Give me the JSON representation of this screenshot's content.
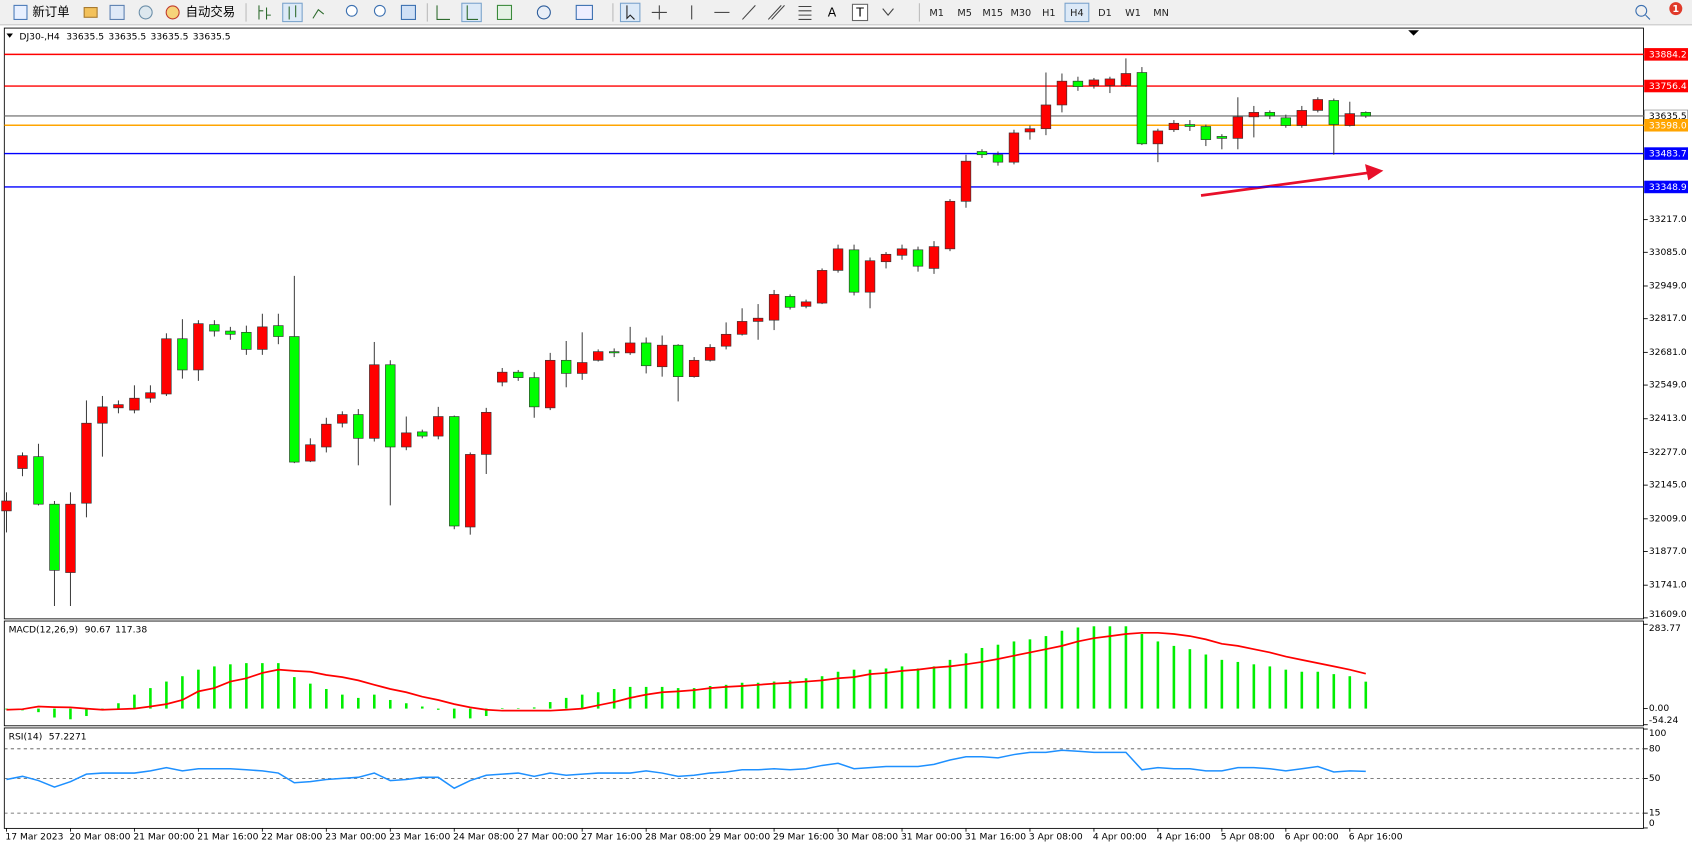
{
  "toolbar": {
    "buttons": [
      "新订单",
      "自动交易"
    ],
    "timeframes": [
      "M1",
      "M5",
      "M15",
      "M30",
      "H1",
      "H4",
      "D1",
      "W1",
      "MN"
    ],
    "text_tools": [
      "A",
      "T"
    ],
    "badge": "1"
  },
  "chart_data": [
    {
      "type": "candlestick",
      "title": "DJ30-,H4",
      "readings": [
        33635.5,
        33635.5,
        33635.5,
        33635.5
      ],
      "categories": [
        "17 Mar 2023",
        null,
        null,
        null,
        "20 Mar 08:00",
        null,
        null,
        null,
        "21 Mar 00:00",
        null,
        null,
        null,
        "21 Mar 16:00",
        null,
        null,
        null,
        "22 Mar 08:00",
        null,
        null,
        null,
        "23 Mar 00:00",
        null,
        null,
        null,
        "23 Mar 16:00",
        null,
        null,
        null,
        "24 Mar 08:00",
        null,
        null,
        null,
        "27 Mar 00:00",
        null,
        null,
        null,
        "27 Mar 16:00",
        null,
        null,
        null,
        "28 Mar 08:00",
        null,
        null,
        null,
        "29 Mar 00:00",
        null,
        null,
        null,
        "29 Mar 16:00",
        null,
        null,
        null,
        "30 Mar 08:00",
        null,
        null,
        null,
        "31 Mar 00:00",
        null,
        null,
        null,
        "31 Mar 16:00",
        null,
        null,
        null,
        "3 Apr 08:00",
        null,
        null,
        null,
        "4 Apr 00:00",
        null,
        null,
        null,
        "4 Apr 16:00",
        null,
        null,
        null,
        "5 Apr 08:00",
        null,
        null,
        null,
        "6 Apr 00:00",
        null,
        null,
        null,
        "6 Apr 16:00",
        null
      ],
      "open": [
        32041,
        32212,
        32260,
        32068,
        31792,
        32072,
        32395,
        32457,
        32448,
        32496,
        32513,
        32736,
        32610,
        32793,
        32767,
        32762,
        32693,
        32789,
        32745,
        32242,
        32299,
        32395,
        32430,
        32334,
        32631,
        32299,
        32360,
        32343,
        32422,
        31976,
        32269,
        32561,
        32601,
        32579,
        32457,
        32649,
        32596,
        32649,
        32684,
        32679,
        32719,
        32623,
        32710,
        32583,
        32649,
        32706,
        32754,
        32806,
        32811,
        32907,
        32867,
        32880,
        33012,
        33095,
        32924,
        33047,
        33073,
        33095,
        33020,
        33099,
        33291,
        33492,
        33479,
        33449,
        33571,
        33584,
        33680,
        33776,
        33759,
        33759,
        33759,
        33811,
        33523,
        33580,
        33601,
        33593,
        33553,
        33545,
        33632,
        33650,
        33628,
        33597,
        33658,
        33698,
        33597,
        33650
      ],
      "high": [
        32116,
        32277,
        32312,
        32081,
        32116,
        32487,
        32505,
        32487,
        32548,
        32548,
        32758,
        32815,
        32811,
        32811,
        32784,
        32789,
        32837,
        32837,
        32990,
        32334,
        32417,
        32443,
        32452,
        32723,
        32649,
        32422,
        32369,
        32461,
        32426,
        32277,
        32457,
        32618,
        32610,
        32601,
        32679,
        32727,
        32762,
        32693,
        32697,
        32784,
        32741,
        32749,
        32714,
        32662,
        32714,
        32802,
        32859,
        32876,
        32933,
        32915,
        32894,
        33020,
        33116,
        33116,
        33064,
        33086,
        33116,
        33108,
        33130,
        33300,
        33479,
        33501,
        33492,
        33580,
        33597,
        33811,
        33807,
        33794,
        33789,
        33794,
        33868,
        33833,
        33584,
        33619,
        33619,
        33601,
        33562,
        33711,
        33676,
        33658,
        33641,
        33676,
        33711,
        33706,
        33693,
        33654
      ],
      "low": [
        31954,
        32181,
        32063,
        31657,
        31657,
        32015,
        32260,
        32435,
        32435,
        32478,
        32505,
        32575,
        32566,
        32745,
        32732,
        32671,
        32671,
        32714,
        32234,
        32238,
        32277,
        32378,
        32225,
        32321,
        32063,
        32286,
        32334,
        32330,
        31967,
        31945,
        32190,
        32544,
        32566,
        32417,
        32448,
        32540,
        32570,
        32644,
        32662,
        32671,
        32596,
        32583,
        32483,
        32579,
        32644,
        32693,
        32749,
        32732,
        32771,
        32854,
        32859,
        32876,
        33003,
        32911,
        32859,
        33020,
        33055,
        33007,
        32998,
        33090,
        33265,
        33466,
        33435,
        33440,
        33540,
        33558,
        33650,
        33737,
        33746,
        33728,
        33754,
        33518,
        33449,
        33571,
        33575,
        33514,
        33501,
        33501,
        33549,
        33623,
        33588,
        33588,
        33650,
        33479,
        33593,
        33628
      ],
      "close": [
        32081,
        32264,
        32068,
        31801,
        32068,
        32395,
        32461,
        32470,
        32496,
        32518,
        32736,
        32610,
        32797,
        32767,
        32754,
        32693,
        32784,
        32745,
        32238,
        32308,
        32391,
        32430,
        32334,
        32631,
        32299,
        32356,
        32343,
        32422,
        31980,
        32269,
        32439,
        32601,
        32579,
        32461,
        32649,
        32596,
        32640,
        32684,
        32679,
        32719,
        32627,
        32710,
        32583,
        32649,
        32701,
        32754,
        32806,
        32819,
        32915,
        32863,
        32885,
        33012,
        33099,
        32924,
        33051,
        33077,
        33099,
        33029,
        33108,
        33291,
        33453,
        33479,
        33449,
        33567,
        33584,
        33680,
        33776,
        33754,
        33781,
        33785,
        33807,
        33523,
        33575,
        33606,
        33593,
        33540,
        33545,
        33632,
        33650,
        33636,
        33597,
        33658,
        33702,
        33601,
        33645,
        33635.5
      ],
      "up_color": "#ff0000",
      "down_color": "#00ff00",
      "ylim": [
        31605,
        33986
      ],
      "yticks": [
        {
          "value": 33217,
          "label": "33217.0"
        },
        {
          "value": 33085,
          "label": "33085.0"
        },
        {
          "value": 32949,
          "label": "32949.0"
        },
        {
          "value": 32817,
          "label": "32817.0"
        },
        {
          "value": 32681,
          "label": "32681.0"
        },
        {
          "value": 32549,
          "label": "32549.0"
        },
        {
          "value": 32413,
          "label": "32413.0"
        },
        {
          "value": 32277,
          "label": "32277.0"
        },
        {
          "value": 32145,
          "label": "32145.0"
        },
        {
          "value": 32009,
          "label": "32009.0"
        },
        {
          "value": 31877,
          "label": "31877.0"
        },
        {
          "value": 31741,
          "label": "31741.0"
        },
        {
          "value": 31609,
          "label": "31609.0"
        }
      ],
      "levels": [
        {
          "value": 33884.2,
          "color": "#ff0000",
          "text_color": "#ffffff"
        },
        {
          "value": 33756.4,
          "color": "#ff0000",
          "text_color": "#ffffff"
        },
        {
          "value": 33635.5,
          "color": "#808080",
          "text_color": "#000000"
        },
        {
          "value": 33598,
          "label": "33598.0",
          "color": "#ffa500",
          "text_color": "#ffffff"
        },
        {
          "value": 33483.7,
          "color": "#0000ff",
          "text_color": "#ffffff"
        },
        {
          "value": 33348.9,
          "color": "#0000ff",
          "text_color": "#ffffff"
        }
      ]
    },
    {
      "type": "macd",
      "title": "MACD(12,26,9)",
      "readings": [
        90.67,
        117.38
      ],
      "histogram": [
        -3,
        -6,
        -12,
        -30,
        -36,
        -25,
        -4,
        18,
        47,
        69,
        91,
        109,
        131,
        142,
        149,
        153,
        153,
        153,
        106,
        84,
        66,
        47,
        36,
        47,
        29,
        18,
        7,
        -4,
        -33,
        -33,
        -25,
        2,
        1,
        4,
        22,
        36,
        47,
        55,
        66,
        73,
        73,
        73,
        69,
        69,
        76,
        80,
        87,
        87,
        91,
        95,
        102,
        109,
        124,
        131,
        131,
        135,
        142,
        135,
        142,
        164,
        186,
        204,
        215,
        226,
        233,
        244,
        262,
        273,
        277,
        277,
        277,
        251,
        226,
        211,
        200,
        182,
        164,
        157,
        149,
        142,
        131,
        124,
        124,
        116,
        109,
        90.67
      ],
      "signal": [
        -4,
        -2,
        7,
        5,
        4,
        0,
        -4,
        -2,
        0,
        7,
        15,
        29,
        58,
        69,
        91,
        102,
        120,
        131,
        127,
        124,
        113,
        106,
        95,
        80,
        66,
        55,
        40,
        29,
        15,
        4,
        -4,
        -7,
        -7,
        -7,
        -7,
        -4,
        0,
        11,
        22,
        36,
        47,
        55,
        58,
        62,
        69,
        73,
        76,
        80,
        84,
        87,
        91,
        95,
        102,
        106,
        116,
        120,
        127,
        131,
        138,
        142,
        149,
        157,
        167,
        178,
        189,
        200,
        211,
        226,
        237,
        244,
        251,
        255,
        255,
        251,
        244,
        233,
        218,
        211,
        200,
        189,
        175,
        164,
        153,
        142,
        131,
        117.38
      ],
      "histogram_color": "#00ee00",
      "signal_color": "#ff0000",
      "ylim": [
        -54.24,
        283.77
      ],
      "yticks": [
        283.77,
        {
          "value": 0,
          "label": "0.00"
        },
        -54.24
      ]
    },
    {
      "type": "line",
      "title": "RSI(14)",
      "readings": [
        57.2271
      ],
      "values": [
        49.0,
        52.2,
        47.9,
        41.3,
        46.8,
        54.4,
        55.5,
        55.5,
        55.5,
        57.7,
        61.0,
        57.7,
        59.9,
        59.9,
        59.9,
        58.8,
        57.7,
        55.5,
        45.7,
        46.8,
        49.0,
        50.1,
        51.2,
        55.5,
        47.9,
        49.0,
        51.2,
        51.2,
        40.2,
        47.9,
        53.3,
        54.4,
        55.5,
        52.2,
        55.5,
        53.3,
        54.4,
        55.5,
        55.5,
        55.5,
        57.7,
        55.5,
        52.2,
        53.3,
        55.5,
        56.6,
        58.8,
        58.8,
        59.9,
        58.8,
        59.9,
        63.2,
        65.4,
        59.9,
        61.0,
        62.1,
        62.1,
        62.1,
        64.3,
        68.7,
        72.0,
        72.0,
        70.9,
        74.2,
        76.4,
        76.4,
        78.6,
        77.5,
        76.4,
        76.4,
        76.4,
        58.8,
        61.0,
        59.9,
        59.9,
        57.7,
        57.7,
        61.0,
        61.0,
        59.9,
        57.7,
        59.9,
        62.1,
        56.6,
        57.7,
        57.2271
      ],
      "color": "#1e90ff",
      "ylim": [
        0,
        100
      ],
      "yticks": [
        100,
        80,
        50,
        15,
        0
      ],
      "levels": [
        80,
        50,
        15
      ]
    }
  ]
}
